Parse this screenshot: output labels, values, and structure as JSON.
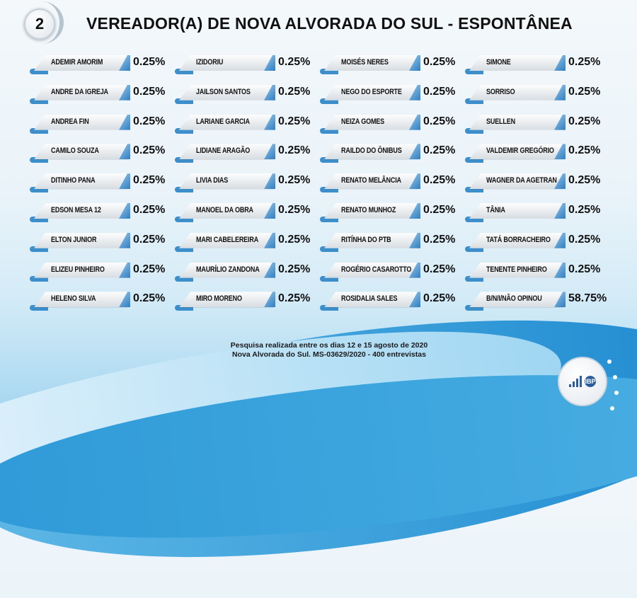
{
  "header": {
    "number": "2",
    "title": "VEREADOR(A) DE NOVA ALVORADA DO SUL - ESPONTÂNEA"
  },
  "chart_data": {
    "type": "table",
    "title": "VEREADOR(A) DE NOVA ALVORADA DO SUL - ESPONTÂNEA",
    "unit": "%",
    "columns": [
      [
        {
          "name": "ADEMIR AMORIM",
          "value": "0.25%"
        },
        {
          "name": "ANDRE DA IGREJA",
          "value": "0.25%"
        },
        {
          "name": "ANDREA FIN",
          "value": "0.25%"
        },
        {
          "name": "CAMILO SOUZA",
          "value": "0.25%"
        },
        {
          "name": "DITINHO PANA",
          "value": "0.25%"
        },
        {
          "name": "EDSON MESA 12",
          "value": "0.25%"
        },
        {
          "name": "ELTON JUNIOR",
          "value": "0.25%"
        },
        {
          "name": "ELIZEU PINHEIRO",
          "value": "0.25%"
        },
        {
          "name": "HELENO SILVA",
          "value": "0.25%"
        }
      ],
      [
        {
          "name": "IZIDORIU",
          "value": "0.25%"
        },
        {
          "name": "JAILSON SANTOS",
          "value": "0.25%"
        },
        {
          "name": "LARIANE GARCIA",
          "value": "0.25%"
        },
        {
          "name": "LIDIANE ARAGÃO",
          "value": "0.25%"
        },
        {
          "name": "LIVIA DIAS",
          "value": "0.25%"
        },
        {
          "name": "MANOEL DA OBRA",
          "value": "0.25%"
        },
        {
          "name": "MARI CABELEREIRA",
          "value": "0.25%"
        },
        {
          "name": "MAURÍLIO ZANDONA",
          "value": "0.25%"
        },
        {
          "name": "MIRO MORENO",
          "value": "0.25%"
        }
      ],
      [
        {
          "name": "MOISÉS NERES",
          "value": "0.25%"
        },
        {
          "name": "NEGO DO ESPORTE",
          "value": "0.25%"
        },
        {
          "name": "NEIZA GOMES",
          "value": "0.25%"
        },
        {
          "name": "RAILDO DO ÔNIBUS",
          "value": "0.25%"
        },
        {
          "name": "RENATO MELÂNCIA",
          "value": "0.25%"
        },
        {
          "name": "RENATO MUNHOZ",
          "value": "0.25%"
        },
        {
          "name": "RITÍNHA DO PTB",
          "value": "0.25%"
        },
        {
          "name": "ROGÉRIO CASAROTTO",
          "value": "0.25%"
        },
        {
          "name": "ROSIDALIA SALES",
          "value": "0.25%"
        }
      ],
      [
        {
          "name": "SIMONE",
          "value": "0.25%"
        },
        {
          "name": "SORRISO",
          "value": "0.25%"
        },
        {
          "name": "SUELLEN",
          "value": "0.25%"
        },
        {
          "name": "VALDEMIR GREGÓRIO",
          "value": "0.25%"
        },
        {
          "name": "WAGNER DA AGETRAN",
          "value": "0.25%"
        },
        {
          "name": "TÂNIA",
          "value": "0.25%"
        },
        {
          "name": "TATÁ BORRACHEIRO",
          "value": "0.25%"
        },
        {
          "name": "TENENTE PINHEIRO",
          "value": "0.25%"
        },
        {
          "name": "B/N/I/NÃO OPINOU",
          "value": "58.75%"
        }
      ]
    ]
  },
  "footer": {
    "line1": "Pesquisa realizada entre os dias 12 e 15 agosto de 2020",
    "line2": "Nova Alvorada do Sul.  MS-03629/2020 - 400 entrevistas"
  },
  "logo": {
    "text": "IBP"
  },
  "colors": {
    "accent": "#2f7fc1",
    "tab": "#3d8fcb"
  }
}
